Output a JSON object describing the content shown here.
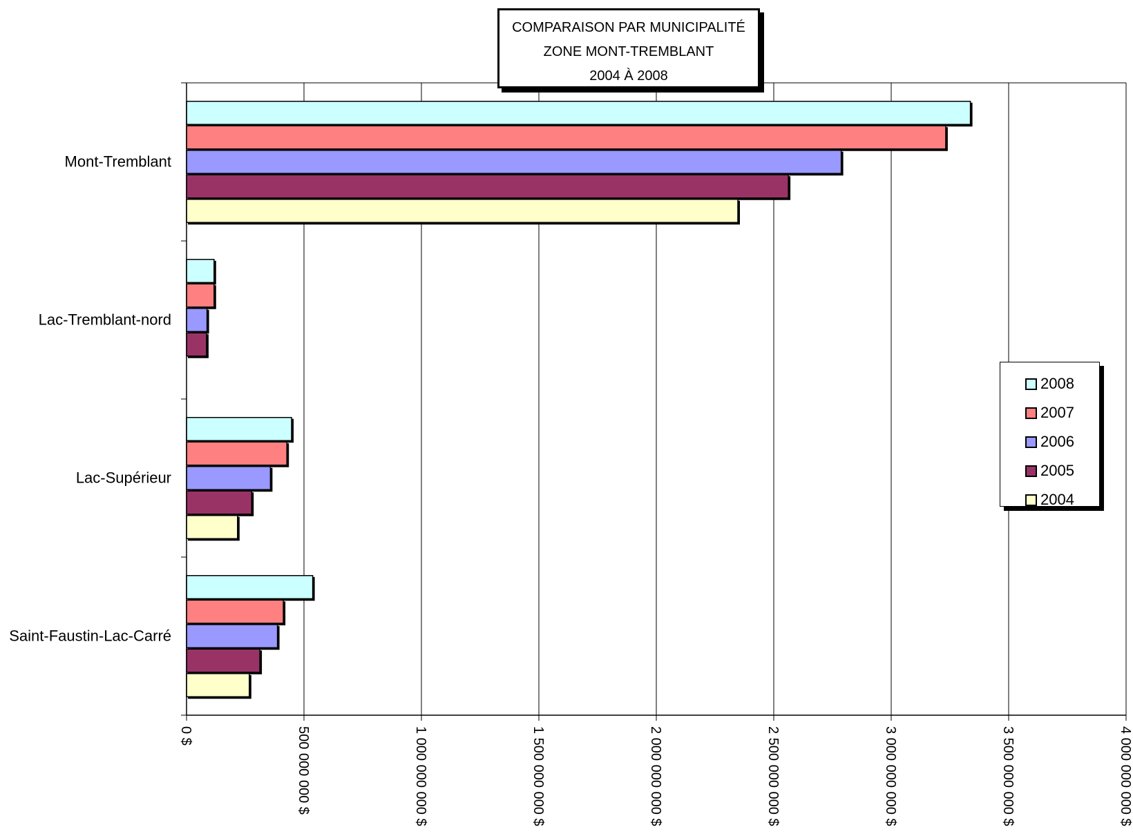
{
  "chart_data": {
    "type": "bar",
    "orientation": "horizontal",
    "title": [
      "COMPARAISON PAR MUNICIPALITÉ",
      "ZONE MONT-TREMBLANT",
      "2004 À 2008"
    ],
    "categories": [
      "Mont-Tremblant",
      "Lac-Tremblant-nord",
      "Lac-Supérieur",
      "Saint-Faustin-Lac-Carré"
    ],
    "series": [
      {
        "name": "2008",
        "color": "#CCFFFF",
        "values": [
          3340000000,
          120000000,
          450000000,
          540000000
        ]
      },
      {
        "name": "2007",
        "color": "#FF8080",
        "values": [
          3235000000,
          120000000,
          430000000,
          415000000
        ]
      },
      {
        "name": "2006",
        "color": "#9999FF",
        "values": [
          2790000000,
          90000000,
          360000000,
          390000000
        ]
      },
      {
        "name": "2005",
        "color": "#993366",
        "values": [
          2565000000,
          88000000,
          280000000,
          315000000
        ]
      },
      {
        "name": "2004",
        "color": "#FFFFCC",
        "values": [
          2350000000,
          null,
          220000000,
          270000000
        ]
      }
    ],
    "xlim": [
      0,
      4000000000
    ],
    "x_ticks": [
      0,
      500000000,
      1000000000,
      1500000000,
      2000000000,
      2500000000,
      3000000000,
      3500000000,
      4000000000
    ],
    "x_tick_labels": [
      "0 $",
      "500 000 000 $",
      "1 000 000 000 $",
      "1 500 000 000 $",
      "2 000 000 000 $",
      "2 500 000 000 $",
      "3 000 000 000 $",
      "3 500 000 000 $",
      "4 000 000 000 $"
    ],
    "grid": true,
    "legend": "right",
    "legend_order": [
      "2008",
      "2007",
      "2006",
      "2005",
      "2004"
    ]
  }
}
